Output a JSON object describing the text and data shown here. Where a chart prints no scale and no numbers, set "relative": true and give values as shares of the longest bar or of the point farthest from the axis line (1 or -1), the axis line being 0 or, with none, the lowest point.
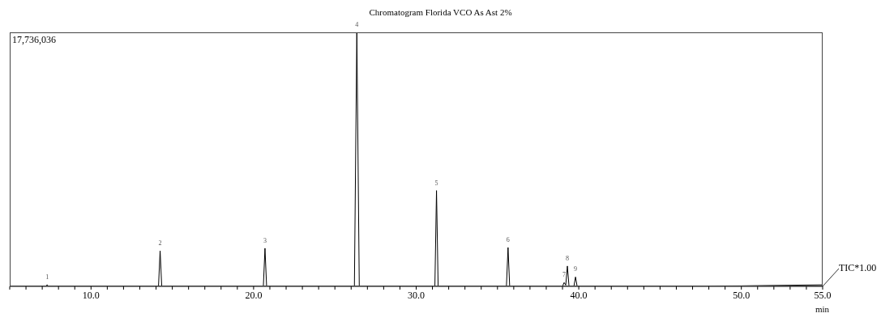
{
  "chart_data": {
    "type": "line",
    "title": "Chromatogram Florida VCO As Ast 2%",
    "xlabel": "min",
    "relative": true,
    "legend": false,
    "grid": false,
    "marker": "none",
    "line_style": "solid",
    "tick_labels": "x",
    "xlim": [
      5,
      55
    ],
    "xticks": [
      {
        "value": 5,
        "label": null
      },
      {
        "value": 6,
        "label": null
      },
      {
        "value": 7,
        "label": null
      },
      {
        "value": 8,
        "label": null
      },
      {
        "value": 9,
        "label": null
      },
      {
        "value": 10,
        "label": "10.0"
      },
      {
        "value": 11,
        "label": null
      },
      {
        "value": 12,
        "label": null
      },
      {
        "value": 13,
        "label": null
      },
      {
        "value": 14,
        "label": null
      },
      {
        "value": 15,
        "label": null
      },
      {
        "value": 16,
        "label": null
      },
      {
        "value": 17,
        "label": null
      },
      {
        "value": 18,
        "label": null
      },
      {
        "value": 19,
        "label": null
      },
      {
        "value": 20,
        "label": "20.0"
      },
      {
        "value": 21,
        "label": null
      },
      {
        "value": 22,
        "label": null
      },
      {
        "value": 23,
        "label": null
      },
      {
        "value": 24,
        "label": null
      },
      {
        "value": 25,
        "label": null
      },
      {
        "value": 26,
        "label": null
      },
      {
        "value": 27,
        "label": null
      },
      {
        "value": 28,
        "label": null
      },
      {
        "value": 29,
        "label": null
      },
      {
        "value": 30,
        "label": "30.0"
      },
      {
        "value": 31,
        "label": null
      },
      {
        "value": 32,
        "label": null
      },
      {
        "value": 33,
        "label": null
      },
      {
        "value": 34,
        "label": null
      },
      {
        "value": 35,
        "label": null
      },
      {
        "value": 36,
        "label": null
      },
      {
        "value": 37,
        "label": null
      },
      {
        "value": 38,
        "label": null
      },
      {
        "value": 39,
        "label": null
      },
      {
        "value": 40,
        "label": "40.0"
      },
      {
        "value": 41,
        "label": null
      },
      {
        "value": 42,
        "label": null
      },
      {
        "value": 43,
        "label": null
      },
      {
        "value": 44,
        "label": null
      },
      {
        "value": 45,
        "label": null
      },
      {
        "value": 46,
        "label": null
      },
      {
        "value": 47,
        "label": null
      },
      {
        "value": 48,
        "label": null
      },
      {
        "value": 49,
        "label": null
      },
      {
        "value": 50,
        "label": "50.0"
      },
      {
        "value": 51,
        "label": null
      },
      {
        "value": 52,
        "label": null
      },
      {
        "value": 53,
        "label": null
      },
      {
        "value": 54,
        "label": null
      },
      {
        "value": 55,
        "label": "55.0"
      }
    ],
    "series": [
      {
        "color": "#000000",
        "x": [
          5,
          7.2,
          7.3,
          7.4,
          14.15,
          14.25,
          14.35,
          20.6,
          20.7,
          20.8,
          26.2,
          26.35,
          26.5,
          31.15,
          31.25,
          31.35,
          35.55,
          35.65,
          35.75,
          39.0,
          39.1,
          39.2,
          39.3,
          39.4,
          39.7,
          39.8,
          39.9,
          50,
          55
        ],
        "values": [
          0,
          0,
          0.006,
          0,
          0,
          0.14,
          0,
          0,
          0.15,
          0,
          0,
          1,
          0,
          0,
          0.377,
          0,
          0,
          0.153,
          0,
          0,
          0.015,
          0.005,
          0.08,
          0,
          0,
          0.037,
          0,
          0.002,
          0.006
        ]
      }
    ],
    "annotations": [
      "17,736,036",
      "TIC*1.00",
      {
        "text": "1",
        "x": 7.3,
        "y": 0.006
      },
      {
        "text": "2",
        "x": 14.25,
        "y": 0.14
      },
      {
        "text": "3",
        "x": 20.7,
        "y": 0.15
      },
      {
        "text": "4",
        "x": 26.35,
        "y": 1
      },
      {
        "text": "5",
        "x": 31.25,
        "y": 0.377
      },
      {
        "text": "6",
        "x": 35.65,
        "y": 0.153
      },
      {
        "text": "7",
        "x": 39.1,
        "y": 0.015
      },
      {
        "text": "8",
        "x": 39.3,
        "y": 0.08
      },
      {
        "text": "9",
        "x": 39.8,
        "y": 0.037
      }
    ]
  }
}
